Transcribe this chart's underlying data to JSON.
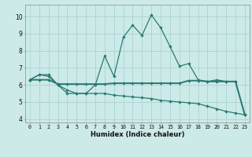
{
  "title": "",
  "xlabel": "Humidex (Indice chaleur)",
  "background_color": "#cceae8",
  "grid_color": "#aad4d2",
  "line_color": "#2a7a72",
  "xlim": [
    -0.5,
    23.5
  ],
  "ylim": [
    3.8,
    10.7
  ],
  "yticks": [
    4,
    5,
    6,
    7,
    8,
    9,
    10
  ],
  "xticks": [
    0,
    1,
    2,
    3,
    4,
    5,
    6,
    7,
    8,
    9,
    10,
    11,
    12,
    13,
    14,
    15,
    16,
    17,
    18,
    19,
    20,
    21,
    22,
    23
  ],
  "series1_x": [
    0,
    1,
    2,
    3,
    4,
    5,
    6,
    7,
    8,
    9,
    10,
    11,
    12,
    13,
    14,
    15,
    16,
    17,
    18,
    19,
    20,
    21,
    22,
    23
  ],
  "series1_y": [
    6.3,
    6.6,
    6.6,
    6.0,
    5.7,
    5.5,
    5.5,
    6.0,
    7.7,
    6.5,
    8.8,
    9.5,
    8.9,
    10.1,
    9.35,
    8.25,
    7.1,
    7.25,
    6.3,
    6.2,
    6.3,
    6.2,
    6.2,
    4.25
  ],
  "series2_x": [
    0,
    1,
    2,
    3,
    4,
    5,
    6,
    7,
    8,
    9,
    10,
    11,
    12,
    13,
    14,
    15,
    16,
    17,
    18,
    19,
    20,
    21,
    22,
    23
  ],
  "series2_y": [
    6.3,
    6.6,
    6.5,
    6.0,
    5.5,
    5.5,
    5.5,
    5.5,
    5.5,
    5.4,
    5.35,
    5.3,
    5.25,
    5.2,
    5.1,
    5.05,
    5.0,
    4.95,
    4.9,
    4.75,
    4.6,
    4.45,
    4.35,
    4.25
  ],
  "series3_x": [
    0,
    1,
    2,
    3,
    4,
    5,
    6,
    7,
    8,
    9,
    10,
    11,
    12,
    13,
    14,
    15,
    16,
    17,
    18,
    19,
    20,
    21,
    22,
    23
  ],
  "series3_y": [
    6.3,
    6.3,
    6.3,
    6.05,
    6.05,
    6.05,
    6.05,
    6.05,
    6.05,
    6.1,
    6.1,
    6.1,
    6.1,
    6.1,
    6.1,
    6.1,
    6.1,
    6.25,
    6.25,
    6.2,
    6.2,
    6.2,
    6.2,
    4.25
  ]
}
